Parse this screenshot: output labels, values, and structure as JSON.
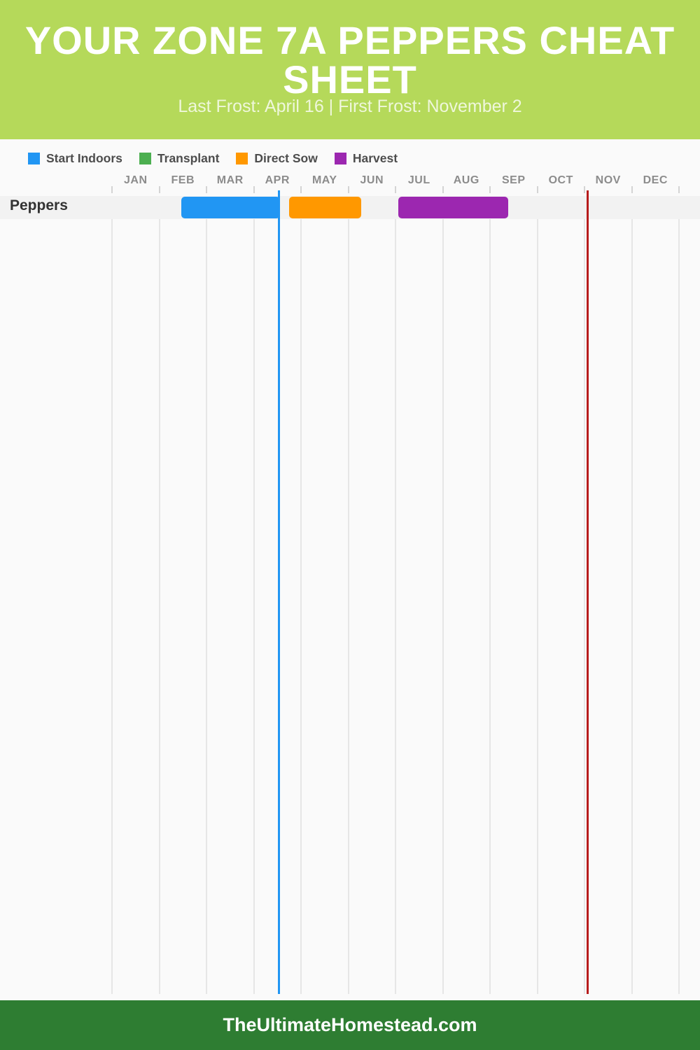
{
  "header": {
    "title": "YOUR ZONE 7A PEPPERS CHEAT SHEET",
    "subtitle": "Last Frost: April 16 | First Frost: November 2",
    "background_color": "#b5d95a"
  },
  "legend": {
    "items": [
      {
        "label": "Start Indoors",
        "color": "#2196f3"
      },
      {
        "label": "Transplant",
        "color": "#4caf50"
      },
      {
        "label": "Direct Sow",
        "color": "#ff9800"
      },
      {
        "label": "Harvest",
        "color": "#9c27b0"
      }
    ]
  },
  "chart_data": {
    "type": "bar",
    "subtype": "horizontal-gantt-planting-timeline",
    "title": "YOUR ZONE 7A PEPPERS CHEAT SHEET",
    "x_axis": {
      "tick_labels": [
        "JAN",
        "FEB",
        "MAR",
        "APR",
        "MAY",
        "JUN",
        "JUL",
        "AUG",
        "SEP",
        "OCT",
        "NOV",
        "DEC"
      ],
      "range_months": [
        0,
        12
      ],
      "grid": true
    },
    "rows": [
      {
        "label": "Peppers",
        "bars": [
          {
            "series": "Start Indoors",
            "color": "#2196f3",
            "start_month": 1.47,
            "end_month": 3.55
          },
          {
            "series": "Direct Sow",
            "color": "#ff9800",
            "start_month": 3.75,
            "end_month": 5.28
          },
          {
            "series": "Harvest",
            "color": "#9c27b0",
            "start_month": 6.06,
            "end_month": 8.39
          }
        ]
      }
    ],
    "markers": [
      {
        "name": "Last Frost",
        "date_label": "April 16",
        "month_position": 3.53,
        "color": "#2196f3"
      },
      {
        "name": "First Frost",
        "date_label": "November 2",
        "month_position": 10.07,
        "color": "#b71c1c"
      }
    ]
  },
  "footer": {
    "text": "TheUltimateHomestead.com",
    "background_color": "#2e7d32"
  }
}
